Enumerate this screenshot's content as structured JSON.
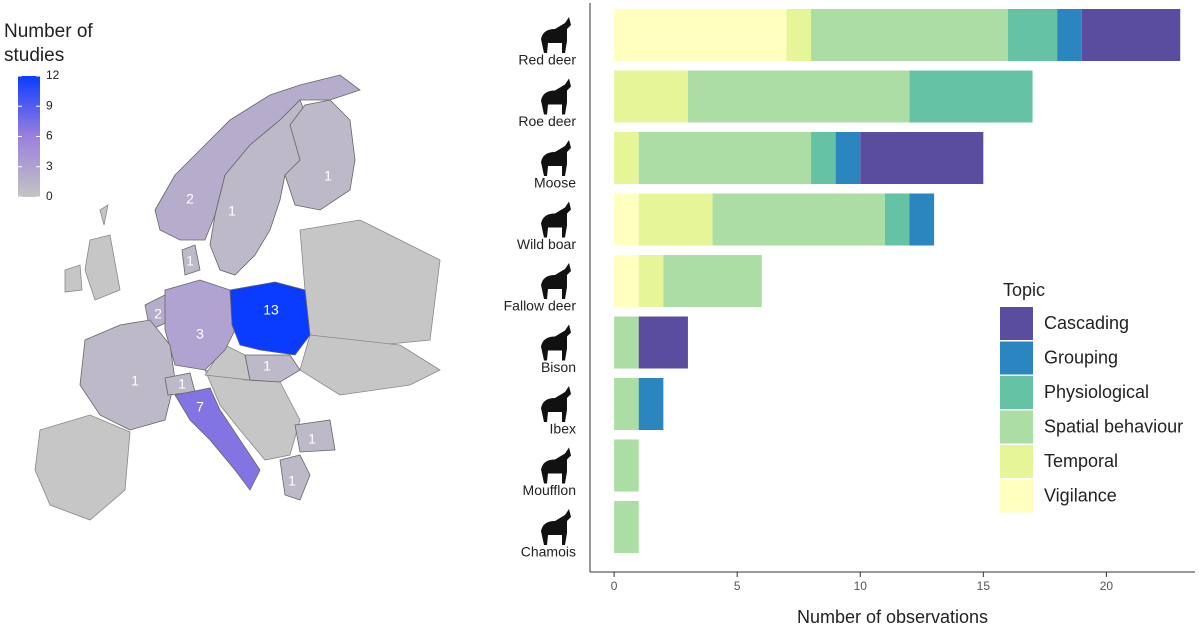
{
  "chart_data": [
    {
      "type": "choropleth",
      "title": "Number of studies",
      "values": [
        2,
        1,
        1,
        1,
        2,
        3,
        13,
        1,
        1,
        1,
        7,
        1,
        1
      ],
      "clim": [
        0,
        12
      ],
      "cticks": [
        0,
        3,
        6,
        9,
        12
      ],
      "colors": [
        "#c4c4c4",
        "#9b7fde",
        "#0a3cff"
      ]
    },
    {
      "type": "bar",
      "orientation": "horizontal",
      "categories": [
        "Red deer",
        "Roe deer",
        "Moose",
        "Wild boar",
        "Fallow deer",
        "Bison",
        "Ibex",
        "Moufflon",
        "Chamois"
      ],
      "series": [
        {
          "name": "Cascading",
          "color": "#5a4da0",
          "values": [
            4,
            0,
            5,
            0,
            0,
            2,
            0,
            0,
            0
          ]
        },
        {
          "name": "Grouping",
          "color": "#2b86c0",
          "values": [
            1,
            0,
            1,
            1,
            0,
            0,
            1,
            0,
            0
          ]
        },
        {
          "name": "Physiological",
          "color": "#66c2a5",
          "values": [
            2,
            5,
            1,
            1,
            0,
            0,
            0,
            0,
            0
          ]
        },
        {
          "name": "Spatial behaviour",
          "color": "#abdda4",
          "values": [
            8,
            9,
            7,
            7,
            4,
            1,
            1,
            1,
            1
          ]
        },
        {
          "name": "Temporal",
          "color": "#e6f598",
          "values": [
            1,
            3,
            1,
            3,
            1,
            0,
            0,
            0,
            0
          ]
        },
        {
          "name": "Vigilance",
          "color": "#ffffbf",
          "values": [
            7,
            0,
            0,
            1,
            1,
            0,
            0,
            0,
            0
          ]
        }
      ],
      "xlabel": "Number of observations",
      "xlim": [
        -0.98,
        23.6
      ],
      "xticks": [
        0,
        5,
        10,
        15,
        20
      ],
      "legend_title": "Topic",
      "legend": "right"
    }
  ]
}
